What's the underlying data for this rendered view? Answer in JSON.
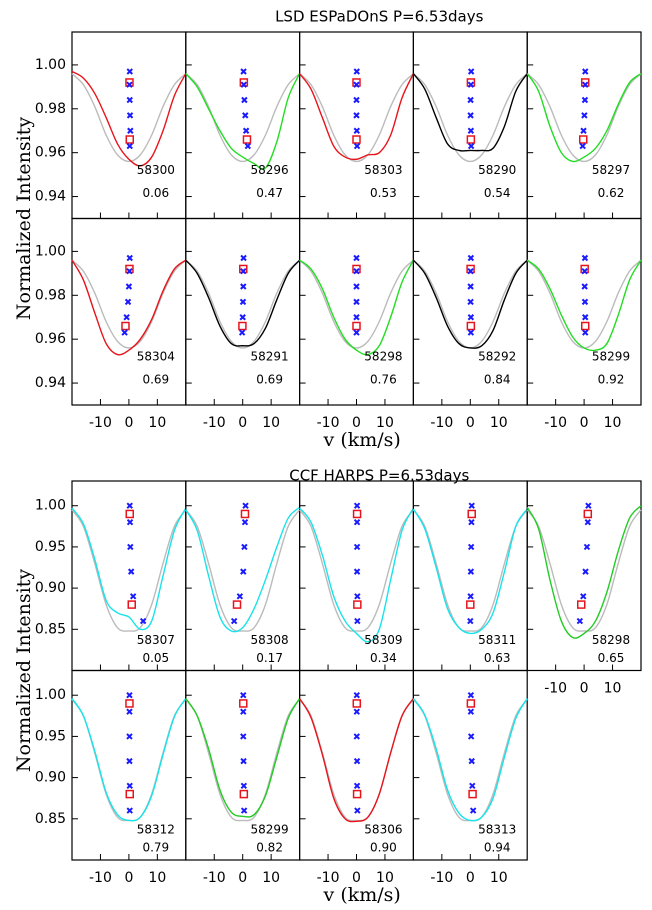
{
  "chart_data": [
    {
      "type": "line",
      "title": "LSD ESPaDOnS  P=6.53days",
      "xlabel": "v (km/s)",
      "ylabel": "Normalized Intensity",
      "x": [
        -20,
        -16,
        -12,
        -8,
        -4,
        0,
        4,
        8,
        12,
        16,
        20
      ],
      "xlim": [
        -20,
        20
      ],
      "xticks": [
        -10,
        0,
        10
      ],
      "ylim": [
        0.93,
        1.015
      ],
      "yticks": [
        0.94,
        0.96,
        0.98,
        {
          "value": 1,
          "label": "1.00"
        }
      ],
      "reference": {
        "color": "#bbbbbb",
        "values": [
          0.996,
          0.991,
          0.981,
          0.968,
          0.959,
          0.956,
          0.959,
          0.968,
          0.981,
          0.991,
          0.996
        ]
      },
      "panels": [
        {
          "label": "58300",
          "phase": "0.06",
          "color": "#e8141b",
          "values": [
            0.997,
            0.994,
            0.987,
            0.976,
            0.964,
            0.957,
            0.954,
            0.958,
            0.97,
            0.986,
            0.996
          ],
          "bisector": {
            "x": [
              0.3,
              0.5,
              0.4,
              0.3,
              0.2,
              0.3
            ],
            "y": [
              0.963,
              0.97,
              0.977,
              0.984,
              0.991,
              0.997
            ]
          },
          "markers": {
            "x": [
              0.3,
              0.2
            ],
            "y": [
              0.966,
              0.992
            ]
          }
        },
        {
          "label": "58296",
          "phase": "0.47",
          "color": "#22dd22",
          "values": [
            0.996,
            0.99,
            0.98,
            0.97,
            0.962,
            0.958,
            0.955,
            0.953,
            0.965,
            0.985,
            0.996
          ],
          "bisector": {
            "x": [
              1.8,
              1.2,
              0.9,
              0.6,
              0.4,
              0.3
            ],
            "y": [
              0.963,
              0.97,
              0.977,
              0.984,
              0.991,
              0.997
            ]
          },
          "markers": {
            "x": [
              1.5,
              0.4
            ],
            "y": [
              0.966,
              0.992
            ]
          }
        },
        {
          "label": "58303",
          "phase": "0.53",
          "color": "#e8141b",
          "values": [
            0.996,
            0.989,
            0.976,
            0.963,
            0.958,
            0.957,
            0.959,
            0.96,
            0.968,
            0.985,
            0.996
          ],
          "bisector": {
            "x": [
              0.2,
              0.1,
              0,
              0,
              0,
              0.1
            ],
            "y": [
              0.963,
              0.97,
              0.977,
              0.984,
              0.991,
              0.997
            ]
          },
          "markers": {
            "x": [
              0,
              0
            ],
            "y": [
              0.966,
              0.992
            ]
          }
        },
        {
          "label": "58290",
          "phase": "0.54",
          "color": "#000000",
          "values": [
            0.996,
            0.989,
            0.976,
            0.964,
            0.961,
            0.961,
            0.961,
            0.962,
            0.972,
            0.988,
            0.996
          ],
          "bisector": {
            "x": [
              0.3,
              0.2,
              0.1,
              0.1,
              0.2,
              0.3
            ],
            "y": [
              0.963,
              0.97,
              0.977,
              0.984,
              0.991,
              0.997
            ]
          },
          "markers": {
            "x": [
              0.2,
              0.2
            ],
            "y": [
              0.966,
              0.992
            ]
          }
        },
        {
          "label": "58297",
          "phase": "0.62",
          "color": "#22dd22",
          "values": [
            0.996,
            0.988,
            0.972,
            0.96,
            0.956,
            0.958,
            0.962,
            0.97,
            0.982,
            0.992,
            0.996
          ],
          "bisector": {
            "x": [
              -0.5,
              -0.2,
              0.1,
              0.3,
              0.4,
              0.4
            ],
            "y": [
              0.963,
              0.97,
              0.977,
              0.984,
              0.991,
              0.997
            ]
          },
          "markers": {
            "x": [
              -0.3,
              0.4
            ],
            "y": [
              0.966,
              0.992
            ]
          }
        },
        {
          "label": "58304",
          "phase": "0.69",
          "color": "#e8141b",
          "values": [
            0.996,
            0.987,
            0.972,
            0.958,
            0.953,
            0.955,
            0.96,
            0.969,
            0.982,
            0.992,
            0.996
          ],
          "bisector": {
            "x": [
              -1.5,
              -0.8,
              -0.3,
              0,
              0.2,
              0.3
            ],
            "y": [
              0.963,
              0.97,
              0.977,
              0.984,
              0.991,
              0.997
            ]
          },
          "markers": {
            "x": [
              -1.2,
              0.2
            ],
            "y": [
              0.966,
              0.992
            ]
          }
        },
        {
          "label": "58291",
          "phase": "0.69",
          "color": "#000000",
          "values": [
            0.996,
            0.99,
            0.979,
            0.966,
            0.958,
            0.957,
            0.958,
            0.965,
            0.978,
            0.99,
            0.996
          ],
          "bisector": {
            "x": [
              -0.2,
              0,
              0.1,
              0.2,
              0.2,
              0.3
            ],
            "y": [
              0.963,
              0.97,
              0.977,
              0.984,
              0.991,
              0.997
            ]
          },
          "markers": {
            "x": [
              -0.1,
              0.2
            ],
            "y": [
              0.966,
              0.992
            ]
          }
        },
        {
          "label": "58298",
          "phase": "0.76",
          "color": "#22dd22",
          "values": [
            0.996,
            0.992,
            0.983,
            0.97,
            0.96,
            0.955,
            0.953,
            0.957,
            0.97,
            0.986,
            0.996
          ],
          "bisector": {
            "x": [
              0,
              0,
              0,
              0,
              0,
              0
            ],
            "y": [
              0.963,
              0.97,
              0.977,
              0.984,
              0.991,
              0.997
            ]
          },
          "markers": {
            "x": [
              0,
              0
            ],
            "y": [
              0.966,
              0.992
            ]
          }
        },
        {
          "label": "58292",
          "phase": "0.84",
          "color": "#000000",
          "values": [
            0.996,
            0.99,
            0.979,
            0.966,
            0.958,
            0.956,
            0.957,
            0.964,
            0.978,
            0.99,
            0.996
          ],
          "bisector": {
            "x": [
              0.2,
              0.2,
              0.1,
              0.1,
              0.1,
              0.2
            ],
            "y": [
              0.963,
              0.97,
              0.977,
              0.984,
              0.991,
              0.997
            ]
          },
          "markers": {
            "x": [
              0.2,
              0.1
            ],
            "y": [
              0.966,
              0.992
            ]
          }
        },
        {
          "label": "58299",
          "phase": "0.92",
          "color": "#22dd22",
          "values": [
            0.996,
            0.992,
            0.983,
            0.971,
            0.961,
            0.956,
            0.955,
            0.958,
            0.971,
            0.987,
            0.996
          ],
          "bisector": {
            "x": [
              0.4,
              0.4,
              0.3,
              0.2,
              0.2,
              0.3
            ],
            "y": [
              0.963,
              0.97,
              0.977,
              0.984,
              0.991,
              0.997
            ]
          },
          "markers": {
            "x": [
              0.4,
              0.2
            ],
            "y": [
              0.966,
              0.992
            ]
          }
        }
      ]
    },
    {
      "type": "line",
      "title": "CCF HARPS  P=6.53days",
      "xlabel": "v (km/s)",
      "ylabel": "Normalized Intensity",
      "x": [
        -20,
        -16,
        -12,
        -8,
        -4,
        0,
        4,
        8,
        12,
        16,
        20
      ],
      "xlim": [
        -20,
        20
      ],
      "xticks": [
        -10,
        0,
        10
      ],
      "ylim": [
        0.8,
        1.03
      ],
      "yticks": [
        0.85,
        {
          "value": 0.9,
          "label": "0.90"
        },
        0.95,
        {
          "value": 1,
          "label": "1.00"
        }
      ],
      "reference": {
        "color": "#bbbbbb",
        "values": [
          0.995,
          0.975,
          0.93,
          0.88,
          0.852,
          0.848,
          0.852,
          0.88,
          0.93,
          0.975,
          0.995
        ]
      },
      "panels": [
        {
          "label": "58307",
          "phase": "0.05",
          "color": "#17e3eb",
          "values": [
            0.997,
            0.978,
            0.935,
            0.885,
            0.87,
            0.865,
            0.85,
            0.86,
            0.915,
            0.97,
            0.997
          ],
          "bisector": {
            "x": [
              5,
              1.5,
              0.8,
              0.5,
              0.4,
              0.3
            ],
            "y": [
              0.86,
              0.89,
              0.92,
              0.95,
              0.98,
              1.0
            ]
          },
          "markers": {
            "x": [
              1,
              0.3
            ],
            "y": [
              0.88,
              0.99
            ]
          }
        },
        {
          "label": "58308",
          "phase": "0.17",
          "color": "#17e3eb",
          "values": [
            0.995,
            0.97,
            0.915,
            0.865,
            0.848,
            0.852,
            0.875,
            0.91,
            0.95,
            0.985,
            0.998
          ],
          "bisector": {
            "x": [
              -3,
              -1,
              0.2,
              0.6,
              0.8,
              1
            ],
            "y": [
              0.86,
              0.89,
              0.92,
              0.95,
              0.98,
              1.0
            ]
          },
          "markers": {
            "x": [
              -2,
              0.8
            ],
            "y": [
              0.88,
              0.99
            ]
          }
        },
        {
          "label": "58309",
          "phase": "0.34",
          "color": "#17e3eb",
          "values": [
            0.997,
            0.98,
            0.94,
            0.89,
            0.86,
            0.845,
            0.835,
            0.85,
            0.91,
            0.97,
            0.997
          ],
          "bisector": {
            "x": [
              0.3,
              0.3,
              0.2,
              0.2,
              0.2,
              0.2
            ],
            "y": [
              0.86,
              0.89,
              0.92,
              0.95,
              0.98,
              1.0
            ]
          },
          "markers": {
            "x": [
              0.3,
              0.2
            ],
            "y": [
              0.88,
              0.99
            ]
          }
        },
        {
          "label": "58311",
          "phase": "0.63",
          "color": "#17e3eb",
          "values": [
            0.996,
            0.972,
            0.925,
            0.875,
            0.852,
            0.845,
            0.85,
            0.87,
            0.92,
            0.975,
            0.996
          ],
          "bisector": {
            "x": [
              0,
              0.1,
              0.2,
              0.3,
              0.4,
              0.5
            ],
            "y": [
              0.86,
              0.89,
              0.92,
              0.95,
              0.98,
              1.0
            ]
          },
          "markers": {
            "x": [
              0,
              0.5
            ],
            "y": [
              0.88,
              0.99
            ]
          }
        },
        {
          "label": "58298",
          "phase": "0.65",
          "color": "#22cc22",
          "values": [
            0.998,
            0.972,
            0.91,
            0.86,
            0.84,
            0.845,
            0.86,
            0.895,
            0.945,
            0.985,
            1.0
          ],
          "bisector": {
            "x": [
              -1.5,
              -0.3,
              0.5,
              1,
              1.3,
              1.5
            ],
            "y": [
              0.86,
              0.89,
              0.92,
              0.95,
              0.98,
              1.0
            ]
          },
          "markers": {
            "x": [
              -1,
              1.3
            ],
            "y": [
              0.88,
              0.99
            ]
          }
        },
        {
          "label": "58312",
          "phase": "0.79",
          "color": "#17e3eb",
          "values": [
            0.996,
            0.975,
            0.932,
            0.882,
            0.855,
            0.848,
            0.852,
            0.878,
            0.928,
            0.974,
            0.996
          ],
          "bisector": {
            "x": [
              0.3,
              0.3,
              0.2,
              0.2,
              0.2,
              0.2
            ],
            "y": [
              0.86,
              0.89,
              0.92,
              0.95,
              0.98,
              1.0
            ]
          },
          "markers": {
            "x": [
              0.3,
              0.2
            ],
            "y": [
              0.88,
              0.99
            ]
          }
        },
        {
          "label": "58299",
          "phase": "0.82",
          "color": "#22cc22",
          "values": [
            0.996,
            0.975,
            0.935,
            0.885,
            0.858,
            0.853,
            0.855,
            0.878,
            0.925,
            0.972,
            0.996
          ],
          "bisector": {
            "x": [
              0.5,
              0.4,
              0.3,
              0.2,
              0.2,
              0.2
            ],
            "y": [
              0.86,
              0.89,
              0.92,
              0.95,
              0.98,
              1.0
            ]
          },
          "markers": {
            "x": [
              0.4,
              0.2
            ],
            "y": [
              0.88,
              0.99
            ]
          }
        },
        {
          "label": "58306",
          "phase": "0.90",
          "color": "#e8141b",
          "values": [
            0.996,
            0.973,
            0.928,
            0.875,
            0.85,
            0.847,
            0.852,
            0.88,
            0.93,
            0.975,
            0.996
          ],
          "bisector": {
            "x": [
              0.3,
              0.2,
              0.2,
              0.1,
              0.1,
              0.1
            ],
            "y": [
              0.86,
              0.89,
              0.92,
              0.95,
              0.98,
              1.0
            ]
          },
          "markers": {
            "x": [
              0.2,
              0.1
            ],
            "y": [
              0.88,
              0.99
            ]
          }
        },
        {
          "label": "58313",
          "phase": "0.94",
          "color": "#17e3eb",
          "values": [
            0.996,
            0.976,
            0.935,
            0.885,
            0.857,
            0.848,
            0.852,
            0.875,
            0.925,
            0.972,
            0.996
          ],
          "bisector": {
            "x": [
              1,
              0.7,
              0.5,
              0.3,
              0.2,
              0.2
            ],
            "y": [
              0.86,
              0.89,
              0.92,
              0.95,
              0.98,
              1.0
            ]
          },
          "markers": {
            "x": [
              0.8,
              0.2
            ],
            "y": [
              0.88,
              0.99
            ]
          }
        }
      ]
    }
  ]
}
